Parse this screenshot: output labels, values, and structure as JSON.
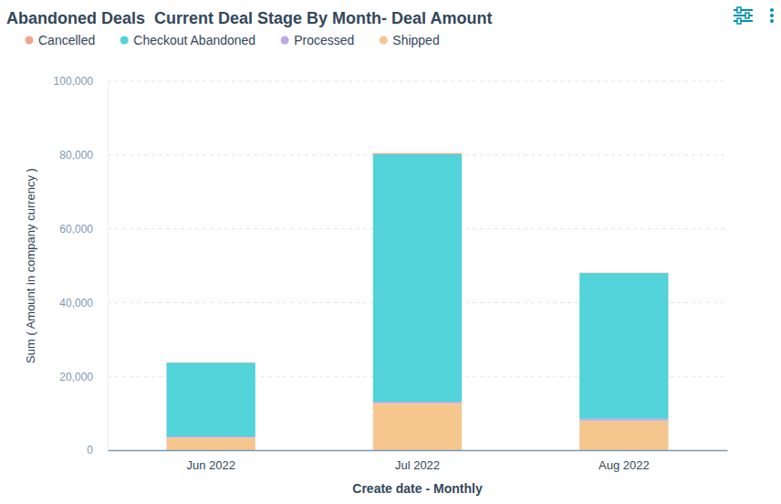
{
  "chart_data": {
    "type": "bar",
    "title": "Abandoned Deals  Current Deal Stage By Month- Deal Amount",
    "x_label": "Create date - Monthly",
    "y_label": "Sum ( Amount in company currency )",
    "categories": [
      "Jun 2022",
      "Jul 2022",
      "Aug 2022"
    ],
    "series": [
      {
        "name": "Cancelled",
        "color": "#f2a58e",
        "values": [
          100,
          300,
          100
        ]
      },
      {
        "name": "Checkout Abandoned",
        "color": "#51d3d9",
        "values": [
          20000,
          67100,
          39500
        ]
      },
      {
        "name": "Processed",
        "color": "#bda7e8",
        "values": [
          300,
          400,
          500
        ]
      },
      {
        "name": "Shipped",
        "color": "#f5c78e",
        "values": [
          3400,
          12700,
          8000
        ]
      }
    ],
    "ylim": [
      0,
      100000
    ],
    "yticks": [
      0,
      {
        "value": 20000,
        "label": "20,000"
      },
      {
        "value": 40000,
        "label": "40,000"
      },
      {
        "value": 60000,
        "label": "60,000"
      },
      {
        "value": 80000,
        "label": "80,000"
      },
      {
        "value": 100000,
        "label": "100,000"
      }
    ],
    "stacked": true,
    "grid": true,
    "legend": "top-left"
  }
}
